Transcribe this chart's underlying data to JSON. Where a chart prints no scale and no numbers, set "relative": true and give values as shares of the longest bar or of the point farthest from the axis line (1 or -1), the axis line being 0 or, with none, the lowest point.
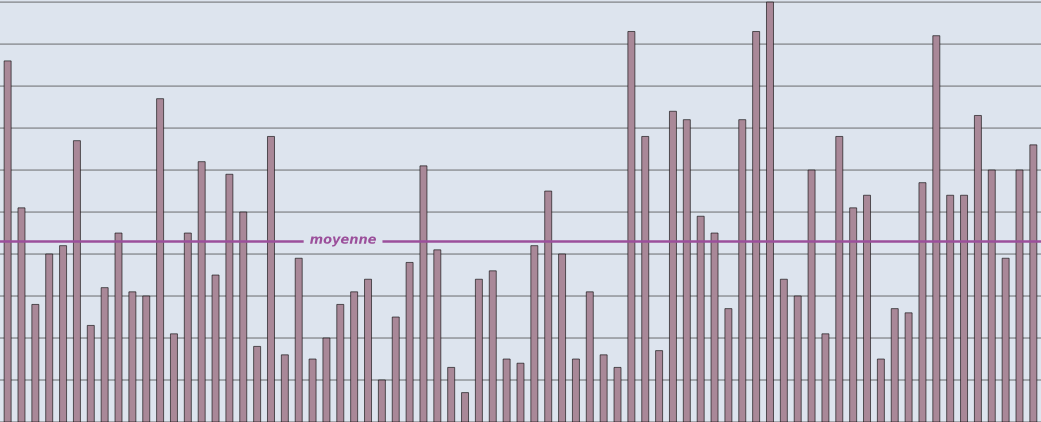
{
  "chart_data": {
    "type": "bar",
    "relative": true,
    "categories": [
      null,
      null,
      null,
      null,
      null,
      null,
      null,
      null,
      null,
      null,
      null,
      null,
      null,
      null,
      null,
      null,
      null,
      null,
      null,
      null,
      null,
      null,
      null,
      null,
      null,
      null,
      null,
      null,
      null,
      null,
      null,
      null,
      null,
      null,
      null,
      null,
      null,
      null,
      null,
      null,
      null,
      null,
      null,
      null,
      null,
      null,
      null,
      null,
      null,
      null,
      null,
      null,
      null,
      null,
      null,
      null,
      null,
      null,
      null,
      null,
      null,
      null,
      null,
      null,
      null,
      null,
      null,
      null,
      null,
      null,
      null,
      null,
      null,
      null,
      null
    ],
    "values": [
      0.86,
      0.51,
      0.28,
      0.4,
      0.42,
      0.67,
      0.23,
      0.32,
      0.45,
      0.31,
      0.3,
      0.77,
      0.21,
      0.45,
      0.62,
      0.35,
      0.59,
      0.5,
      0.18,
      0.68,
      0.16,
      0.39,
      0.15,
      0.2,
      0.28,
      0.31,
      0.34,
      0.1,
      0.25,
      0.38,
      0.61,
      0.41,
      0.13,
      0.07,
      0.34,
      0.36,
      0.15,
      0.14,
      0.42,
      0.55,
      0.4,
      0.15,
      0.31,
      0.16,
      0.13,
      0.93,
      0.68,
      0.17,
      0.74,
      0.72,
      0.49,
      0.45,
      0.27,
      0.72,
      0.93,
      1,
      0.34,
      0.3,
      0.6,
      0.21,
      0.68,
      0.51,
      0.54,
      0.15,
      0.27,
      0.26,
      0.57,
      0.92,
      0.54,
      0.54,
      0.73,
      0.6,
      0.39,
      0.6,
      0.66
    ],
    "color": "#a98898",
    "grid": "y",
    "ref_lines": [
      {
        "axis": "y",
        "value": 0.43,
        "label": "moyenne",
        "color": "#9b4f9b"
      }
    ]
  }
}
